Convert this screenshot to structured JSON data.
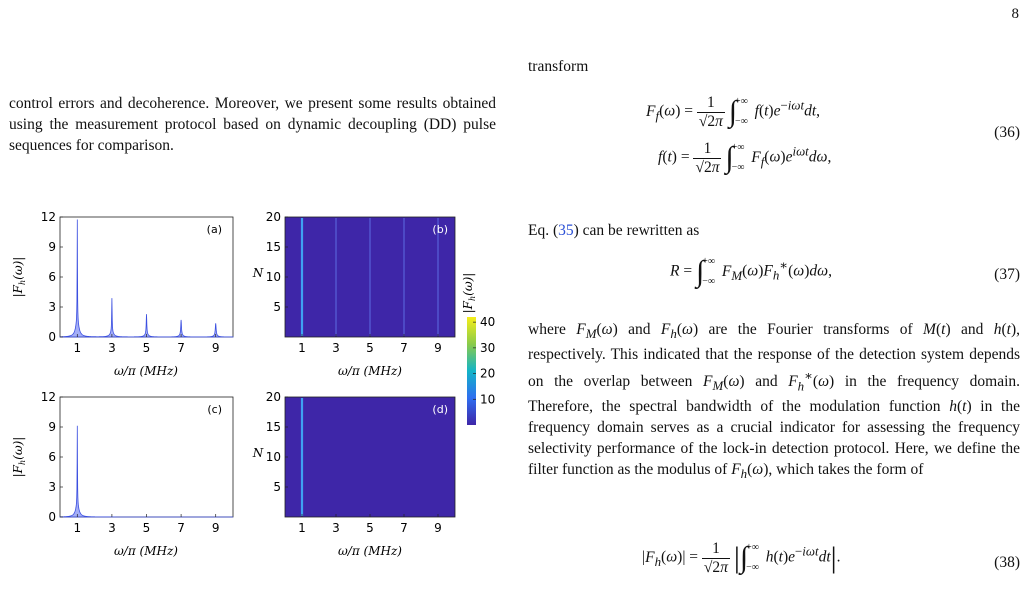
{
  "page_number": "8",
  "left_paragraph": "control errors and decoherence. Moreover, we present some results obtained using the measurement protocol based on dynamic decoupling (DD) pulse sequences for comparison.",
  "right_column": {
    "intro_word": "transform",
    "eq36_line1": "F_f(ω) = 1/√(2π) ∫_{−∞}^{+∞} f(t)e^{−iωt}dt,",
    "eq36_line2": "f(t) = 1/√(2π) ∫_{−∞}^{+∞} F_f(ω)e^{iωt}dω,",
    "eq36_number": "(36)",
    "eq35_ref_prefix": "Eq. (",
    "eq35_ref": "35",
    "eq35_ref_suffix": ") can be rewritten as",
    "eq37": "R = ∫_{−∞}^{+∞} F_M(ω)F_h^*(ω)dω,",
    "eq37_number": "(37)",
    "paragraph": "where F_M(ω) and F_h(ω) are the Fourier transforms of M(t) and h(t), respectively. This indicated that the response of the detection system depends on the overlap between F_M(ω) and F_h^*(ω) in the frequency domain. Therefore, the spectral bandwidth of the modulation function h(t) in the frequency domain serves as a crucial indicator for assessing the frequency selectivity performance of the lock-in detection protocol. Here, we define the filter function as the modulus of F_h(ω), which takes the form of",
    "eq38": "|F_h(ω)| = 1/√(2π) |∫_{−∞}^{+∞} h(t)e^{−iωt}dt|.",
    "eq38_number": "(38)"
  },
  "chart_data": [
    {
      "type": "line",
      "panel_label": "(a)",
      "xlabel": "ω/π (MHz)",
      "ylabel": "|F_h(ω)|",
      "xlim": [
        0,
        10
      ],
      "ylim": [
        0,
        12
      ],
      "xticks": [
        "1",
        "3",
        "5",
        "7",
        "9"
      ],
      "yticks": [
        "0",
        "3",
        "6",
        "9",
        "12"
      ],
      "peaks": [
        {
          "x": 1,
          "y": 10.3
        },
        {
          "x": 3,
          "y": 3.4
        },
        {
          "x": 5,
          "y": 2.0
        },
        {
          "x": 7,
          "y": 1.5
        },
        {
          "x": 9,
          "y": 1.2
        }
      ],
      "color": "#3b4fe0"
    },
    {
      "type": "heatmap",
      "panel_label": "(b)",
      "xlabel": "ω/π (MHz)",
      "ylabel": "N",
      "xlim": [
        0,
        10
      ],
      "ylim": [
        0,
        20
      ],
      "xticks": [
        "1",
        "3",
        "5",
        "7",
        "9"
      ],
      "yticks": [
        "5",
        "10",
        "15",
        "20"
      ],
      "bright_lines_x": [
        1,
        3,
        5,
        7,
        9
      ]
    },
    {
      "type": "line",
      "panel_label": "(c)",
      "xlabel": "ω/π (MHz)",
      "ylabel": "|F_h(ω)|",
      "xlim": [
        0,
        10
      ],
      "ylim": [
        0,
        12
      ],
      "xticks": [
        "1",
        "3",
        "5",
        "7",
        "9"
      ],
      "yticks": [
        "0",
        "3",
        "6",
        "9",
        "12"
      ],
      "peaks": [
        {
          "x": 1,
          "y": 8.0
        }
      ],
      "color": "#3b4fe0"
    },
    {
      "type": "heatmap",
      "panel_label": "(d)",
      "xlabel": "ω/π (MHz)",
      "ylabel": "N",
      "xlim": [
        0,
        10
      ],
      "ylim": [
        0,
        20
      ],
      "xticks": [
        "1",
        "3",
        "5",
        "7",
        "9"
      ],
      "yticks": [
        "5",
        "10",
        "15",
        "20"
      ],
      "bright_lines_x": [
        1
      ]
    }
  ],
  "colorbar": {
    "label": "|F_h(ω)|",
    "ticks": [
      "10",
      "20",
      "30",
      "40"
    ],
    "range": [
      0,
      42
    ]
  }
}
